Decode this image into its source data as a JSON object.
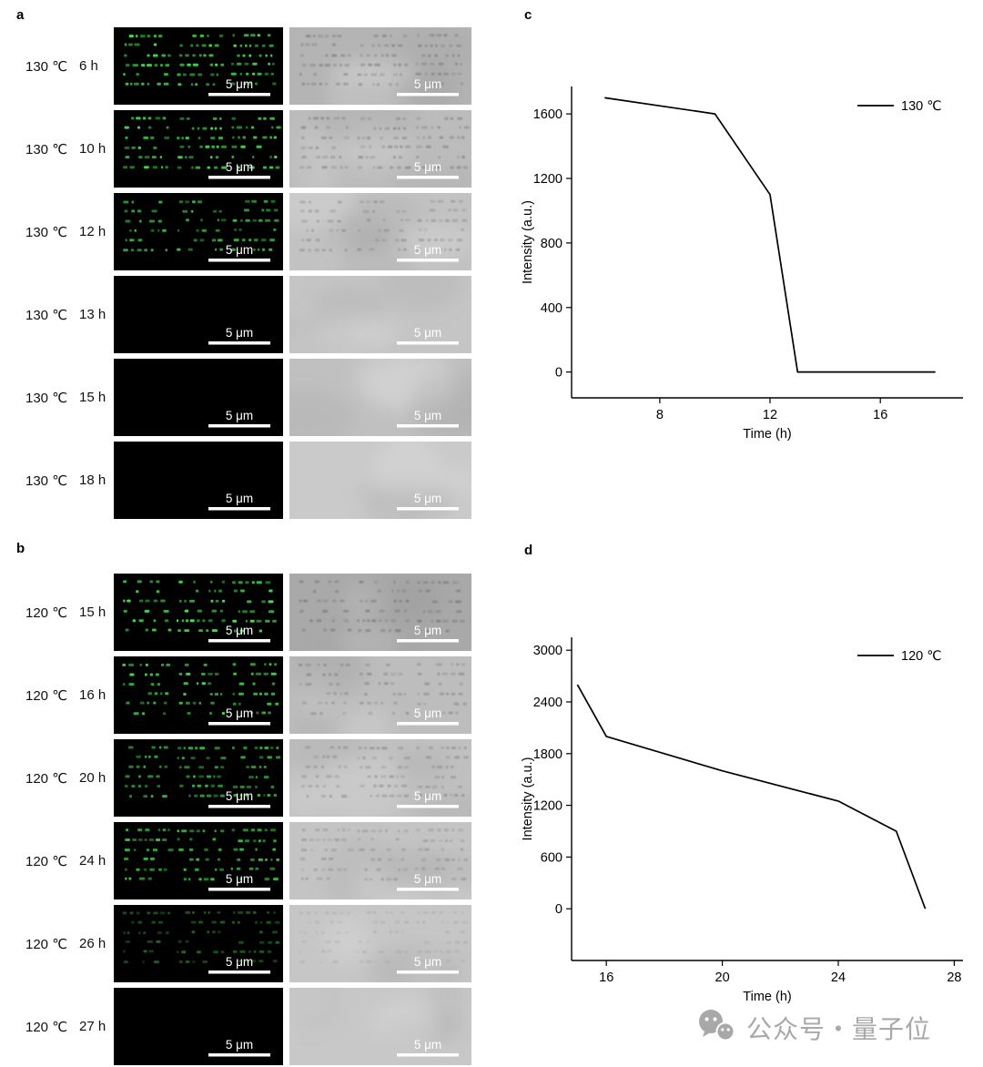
{
  "figure": {
    "background": "#ffffff"
  },
  "panels": {
    "a": {
      "label": "a",
      "rows": [
        {
          "temp": "130 ℃",
          "time": "6 h",
          "scale_bar": "5 μm",
          "fluorescence_level": 1.0,
          "bf_pattern_level": 0.85,
          "bf_shade": "#b4b4b4"
        },
        {
          "temp": "130 ℃",
          "time": "10 h",
          "scale_bar": "5 μm",
          "fluorescence_level": 0.95,
          "bf_pattern_level": 0.8,
          "bf_shade": "#bcbcbc"
        },
        {
          "temp": "130 ℃",
          "time": "12 h",
          "scale_bar": "5 μm",
          "fluorescence_level": 0.8,
          "bf_pattern_level": 0.65,
          "bf_shade": "#c2c2c2"
        },
        {
          "temp": "130 ℃",
          "time": "13 h",
          "scale_bar": "5 μm",
          "fluorescence_level": 0,
          "bf_pattern_level": 0,
          "bf_shade": "#c5c5c5"
        },
        {
          "temp": "130 ℃",
          "time": "15 h",
          "scale_bar": "5 μm",
          "fluorescence_level": 0,
          "bf_pattern_level": 0,
          "bf_shade": "#c0c0c0"
        },
        {
          "temp": "130 ℃",
          "time": "18 h",
          "scale_bar": "5 μm",
          "fluorescence_level": 0,
          "bf_pattern_level": 0,
          "bf_shade": "#cacaca"
        }
      ]
    },
    "b": {
      "label": "b",
      "rows": [
        {
          "temp": "120 ℃",
          "time": "15 h",
          "scale_bar": "5 μm",
          "fluorescence_level": 1.0,
          "bf_pattern_level": 0.9,
          "bf_shade": "#a9a9a9"
        },
        {
          "temp": "120 ℃",
          "time": "16 h",
          "scale_bar": "5 μm",
          "fluorescence_level": 0.95,
          "bf_pattern_level": 0.75,
          "bf_shade": "#bdbdbd"
        },
        {
          "temp": "120 ℃",
          "time": "20 h",
          "scale_bar": "5 μm",
          "fluorescence_level": 0.8,
          "bf_pattern_level": 0.7,
          "bf_shade": "#c0c0c0"
        },
        {
          "temp": "120 ℃",
          "time": "24 h",
          "scale_bar": "5 μm",
          "fluorescence_level": 0.85,
          "bf_pattern_level": 0.6,
          "bf_shade": "#c4c4c4"
        },
        {
          "temp": "120 ℃",
          "time": "26 h",
          "scale_bar": "5 μm",
          "fluorescence_level": 0.45,
          "bf_pattern_level": 0.3,
          "bf_shade": "#c6c6c6"
        },
        {
          "temp": "120 ℃",
          "time": "27 h",
          "scale_bar": "5 μm",
          "fluorescence_level": 0,
          "bf_pattern_level": 0,
          "bf_shade": "#c8c8c8"
        }
      ]
    }
  },
  "chart_data": [
    {
      "panel_label": "c",
      "type": "line",
      "legend": "130 ℃",
      "legend_position": "top-right",
      "xlabel": "Time (h)",
      "ylabel": "Intensity (a.u.)",
      "x": [
        6,
        10,
        12,
        13,
        15,
        18
      ],
      "y": [
        1700,
        1600,
        1100,
        0,
        0,
        0
      ],
      "xticks": [
        8,
        12,
        16
      ],
      "yticks": [
        0,
        400,
        800,
        1200,
        1600
      ],
      "xlim": [
        4.8,
        19
      ],
      "ylim": [
        -160,
        1770
      ],
      "grid": false,
      "line_color": "#000000"
    },
    {
      "panel_label": "d",
      "type": "line",
      "legend": "120 ℃",
      "legend_position": "top-right",
      "xlabel": "Time (h)",
      "ylabel": "Intensity (a.u.)",
      "x": [
        15,
        16,
        20,
        24,
        26,
        27
      ],
      "y": [
        2600,
        2000,
        1600,
        1250,
        900,
        0
      ],
      "xticks": [
        16,
        20,
        24,
        28
      ],
      "yticks": [
        0,
        600,
        1200,
        1800,
        2400,
        3000
      ],
      "xlim": [
        14.8,
        28.3
      ],
      "ylim": [
        -600,
        3150
      ],
      "grid": false,
      "line_color": "#000000"
    }
  ],
  "colors": {
    "fluorescence_dot": "#45e04e",
    "scale_bar": "#ffffff",
    "axis": "#000000",
    "watermark": "#a8a8a8"
  },
  "watermark": {
    "text": "公众号・量子位"
  }
}
